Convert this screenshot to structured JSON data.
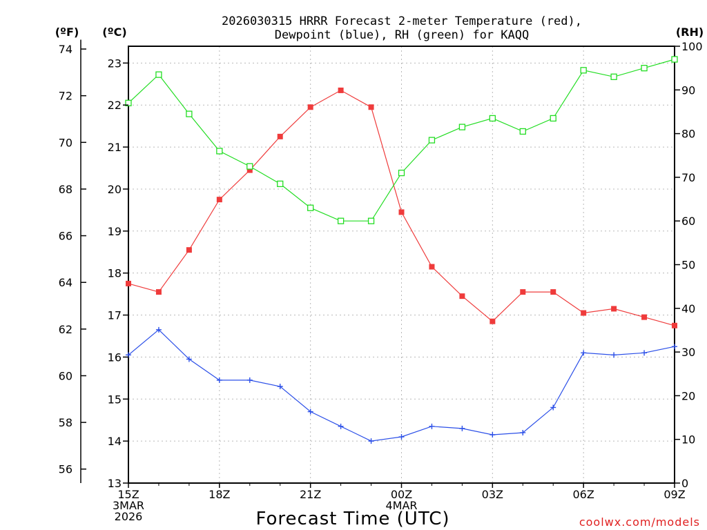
{
  "chart_data": {
    "type": "line",
    "title": {
      "line1": "2026030315 HRRR Forecast 2-meter Temperature (red),",
      "line2": "Dewpoint (blue), RH (green) for KAQQ"
    },
    "xlabel": "Forecast Time (UTC)",
    "watermark": "coolwx.com/models",
    "x_tick_labels": [
      {
        "index": 0,
        "lines": [
          "15Z",
          "3MAR",
          "2026"
        ]
      },
      {
        "index": 3,
        "lines": [
          "18Z"
        ]
      },
      {
        "index": 6,
        "lines": [
          "21Z"
        ]
      },
      {
        "index": 9,
        "lines": [
          "00Z",
          "4MAR"
        ]
      },
      {
        "index": 12,
        "lines": [
          "03Z"
        ]
      },
      {
        "index": 15,
        "lines": [
          "06Z"
        ]
      },
      {
        "index": 18,
        "lines": [
          "09Z"
        ]
      }
    ],
    "axes": {
      "celsius": {
        "label": "(ºC)",
        "min": 13,
        "max": 23.4,
        "ticks": [
          13,
          14,
          15,
          16,
          17,
          18,
          19,
          20,
          21,
          22,
          23
        ]
      },
      "fahrenheit": {
        "label": "(ºF)",
        "ticks": [
          56,
          58,
          60,
          62,
          64,
          66,
          68,
          70,
          72,
          74
        ]
      },
      "rh": {
        "label": "(RH)",
        "min": 0,
        "max": 100,
        "ticks": [
          0,
          10,
          20,
          30,
          40,
          50,
          60,
          70,
          80,
          90,
          100
        ]
      }
    },
    "series": [
      {
        "name": "Temperature",
        "color": "#ef3b3b",
        "marker": "filled-square",
        "axis": "celsius",
        "values": [
          17.75,
          17.55,
          18.55,
          19.75,
          20.45,
          21.25,
          21.95,
          22.35,
          21.95,
          19.45,
          18.15,
          17.45,
          16.85,
          17.55,
          17.55,
          17.05,
          17.15,
          16.95,
          16.75
        ]
      },
      {
        "name": "Dewpoint",
        "color": "#2b4fe8",
        "marker": "plus",
        "axis": "celsius",
        "values": [
          16.05,
          16.65,
          15.95,
          15.45,
          15.45,
          15.3,
          14.7,
          14.35,
          14.0,
          14.1,
          14.35,
          14.3,
          14.15,
          14.2,
          14.8,
          16.1,
          16.05,
          16.1,
          16.25
        ]
      },
      {
        "name": "RH",
        "color": "#22dd22",
        "marker": "open-square",
        "axis": "rh",
        "values": [
          87,
          93.5,
          84.5,
          76,
          72.5,
          68.5,
          63,
          60,
          60,
          71,
          78.5,
          81.5,
          83.5,
          80.5,
          83.5,
          94.5,
          93,
          95,
          97
        ]
      }
    ],
    "grid": true
  }
}
